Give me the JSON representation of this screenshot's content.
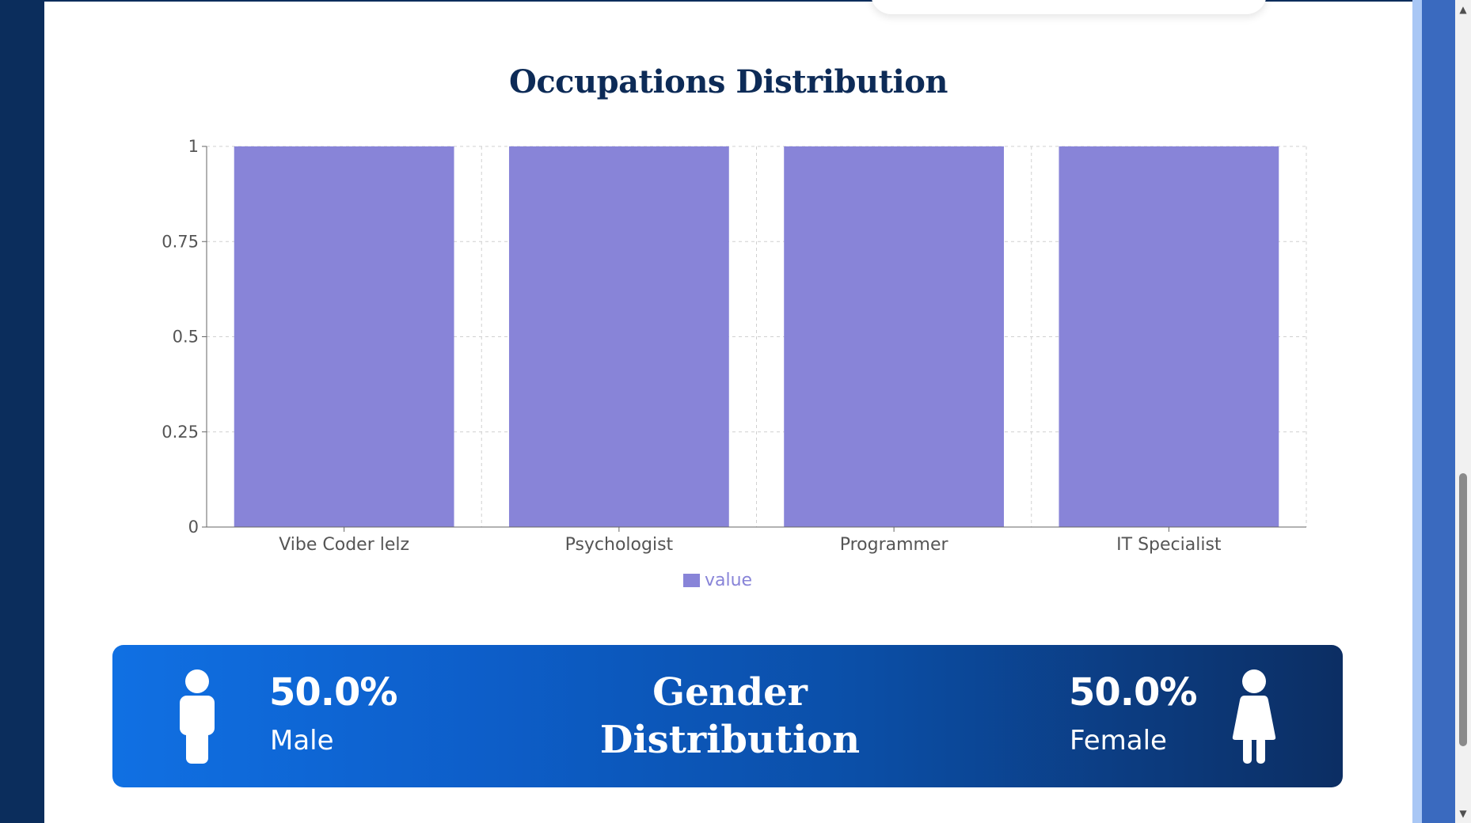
{
  "chart_data": {
    "type": "bar",
    "title": "Occupations Distribution",
    "categories": [
      "Vibe Coder lelz",
      "Psychologist",
      "Programmer",
      "IT Specialist"
    ],
    "series": [
      {
        "name": "value",
        "values": [
          1,
          1,
          1,
          1
        ]
      }
    ],
    "ylim": [
      0,
      1
    ],
    "yticks": [
      "0",
      "0.25",
      "0.5",
      "0.75",
      "1"
    ],
    "ytick_values": [
      0,
      0.25,
      0.5,
      0.75,
      1
    ],
    "grid": true,
    "legend": "bottom-center",
    "bar_color": "#8884d8"
  },
  "gender": {
    "title_line1": "Gender",
    "title_line2": "Distribution",
    "male_pct": "50.0%",
    "male_label": "Male",
    "female_pct": "50.0%",
    "female_label": "Female",
    "male_icon": "male-person-icon",
    "female_icon": "female-person-icon"
  },
  "colors": {
    "title": "#0d2b57",
    "card_start": "#1070e3",
    "card_end": "#0c2e63",
    "left_rail": "#0b2d5c",
    "right_panel": "#3a6abf"
  }
}
